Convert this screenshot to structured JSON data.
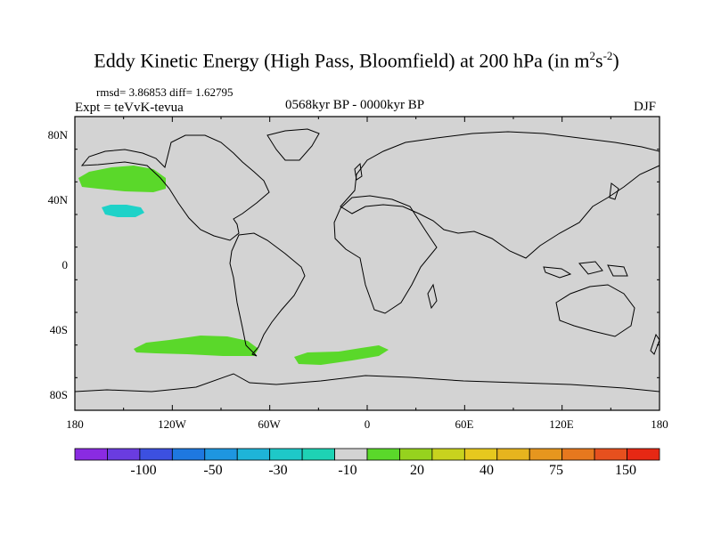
{
  "title": {
    "main": "Eddy Kinetic Energy (High Pass, Bloomfield) at 200 hPa (in m",
    "sup1": "2",
    "mid": "s",
    "sup2": "-2",
    "close": ")"
  },
  "stats": "rmsd= 3.86853 diff= 1.62795",
  "expt": "Expt = teVvK-tevua",
  "period": "0568kyr BP - 0000kyr BP",
  "season": "DJF",
  "map": {
    "projection": "cylindrical-equidistant",
    "lat_range": [
      -90,
      90
    ],
    "lon_range": [
      -180,
      180
    ],
    "background_color": "#d3d3d3",
    "lat_ticks": [
      "80N",
      "40N",
      "0",
      "40S",
      "80S"
    ],
    "lon_ticks": [
      "180",
      "120W",
      "60W",
      "0",
      "60E",
      "120E",
      "180"
    ],
    "anomaly_regions": [
      {
        "label": "north-pacific-positive",
        "level": 20,
        "color": "#5ad82a"
      },
      {
        "label": "north-pacific-negative",
        "level": -10,
        "color": "#1ed2c8"
      },
      {
        "label": "south-pacific-positive",
        "level": 20,
        "color": "#5ad82a"
      },
      {
        "label": "south-atlantic-positive",
        "level": 20,
        "color": "#5ad82a"
      }
    ]
  },
  "colorbar": {
    "colors": [
      "#8a2be2",
      "#6a3ce0",
      "#3c50e0",
      "#1e78e0",
      "#1e96e0",
      "#1eb4d8",
      "#1ec8c8",
      "#1ed2b4",
      "#d3d3d3",
      "#5ad82a",
      "#96d21e",
      "#c8d21e",
      "#e6c81e",
      "#e6b41e",
      "#e6961e",
      "#e6781e",
      "#e6501e",
      "#e62814"
    ],
    "labels": [
      "-100",
      "-50",
      "-30",
      "-10",
      "20",
      "40",
      "75",
      "150"
    ]
  }
}
